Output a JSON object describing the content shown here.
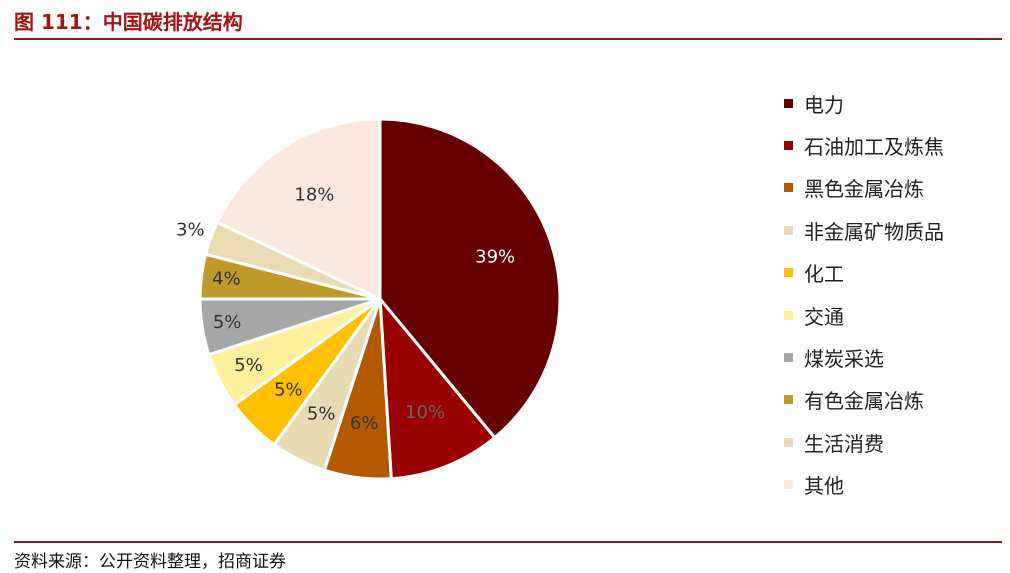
{
  "header": {
    "title": "图 111：中国碳排放结构"
  },
  "footer": {
    "source": "资料来源：公开资料整理，招商证券"
  },
  "chart_data": {
    "type": "pie",
    "start_angle_deg": 0,
    "direction": "clockwise",
    "legend_position": "right",
    "slices": [
      {
        "label": "电力",
        "value": 39,
        "display": "39%",
        "color": "#660000",
        "label_color": "#ffffff"
      },
      {
        "label": "石油加工及炼焦",
        "value": 10,
        "display": "10%",
        "color": "#990000",
        "label_color": "#666666"
      },
      {
        "label": "黑色金属冶炼",
        "value": 6,
        "display": "6%",
        "color": "#b35900",
        "label_color": "#333333"
      },
      {
        "label": "非金属矿物质品",
        "value": 5,
        "display": "5%",
        "color": "#e8dbb3",
        "label_color": "#333333"
      },
      {
        "label": "化工",
        "value": 5,
        "display": "5%",
        "color": "#ffc000",
        "label_color": "#333333"
      },
      {
        "label": "交通",
        "value": 5,
        "display": "5%",
        "color": "#fff0a0",
        "label_color": "#333333"
      },
      {
        "label": "煤炭采选",
        "value": 5,
        "display": "5%",
        "color": "#a6a6a6",
        "label_color": "#333333"
      },
      {
        "label": "有色金属冶炼",
        "value": 4,
        "display": "4%",
        "color": "#bf9a2a",
        "label_color": "#333333"
      },
      {
        "label": "生活消费",
        "value": 3,
        "display": "3%",
        "color": "#eadbb5",
        "label_color": "#333333"
      },
      {
        "label": "其他",
        "value": 18,
        "display": "18%",
        "color": "#fbe9e0",
        "label_color": "#333333"
      }
    ]
  }
}
